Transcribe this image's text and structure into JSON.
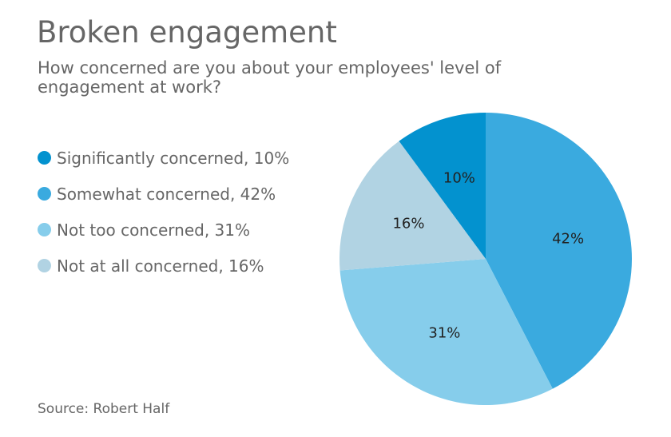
{
  "title": "Broken engagement",
  "subtitle": "How concerned are you about your employees' level of engagement at work?",
  "source": "Source: Robert Half",
  "colors": {
    "significantly": "#0392cf",
    "somewhat": "#3aaadf",
    "not_too": "#86cdeb",
    "not_at_all": "#b1d3e3"
  },
  "legend": [
    {
      "label": "Significantly concerned, 10%",
      "color": "#0392cf"
    },
    {
      "label": "Somewhat concerned, 42%",
      "color": "#3aaadf"
    },
    {
      "label": "Not too concerned, 31%",
      "color": "#86cdeb"
    },
    {
      "label": "Not at all concerned, 16%",
      "color": "#b1d3e3"
    }
  ],
  "chart_data": {
    "type": "pie",
    "title": "Broken engagement",
    "subtitle": "How concerned are you about your employees' level of engagement at work?",
    "categories": [
      "Significantly concerned",
      "Somewhat concerned",
      "Not too concerned",
      "Not at all concerned"
    ],
    "values": [
      10,
      42,
      31,
      16
    ],
    "data_labels": [
      "10%",
      "42%",
      "31%",
      "16%"
    ],
    "colors": [
      "#0392cf",
      "#3aaadf",
      "#86cdeb",
      "#b1d3e3"
    ],
    "legend_position": "left"
  }
}
